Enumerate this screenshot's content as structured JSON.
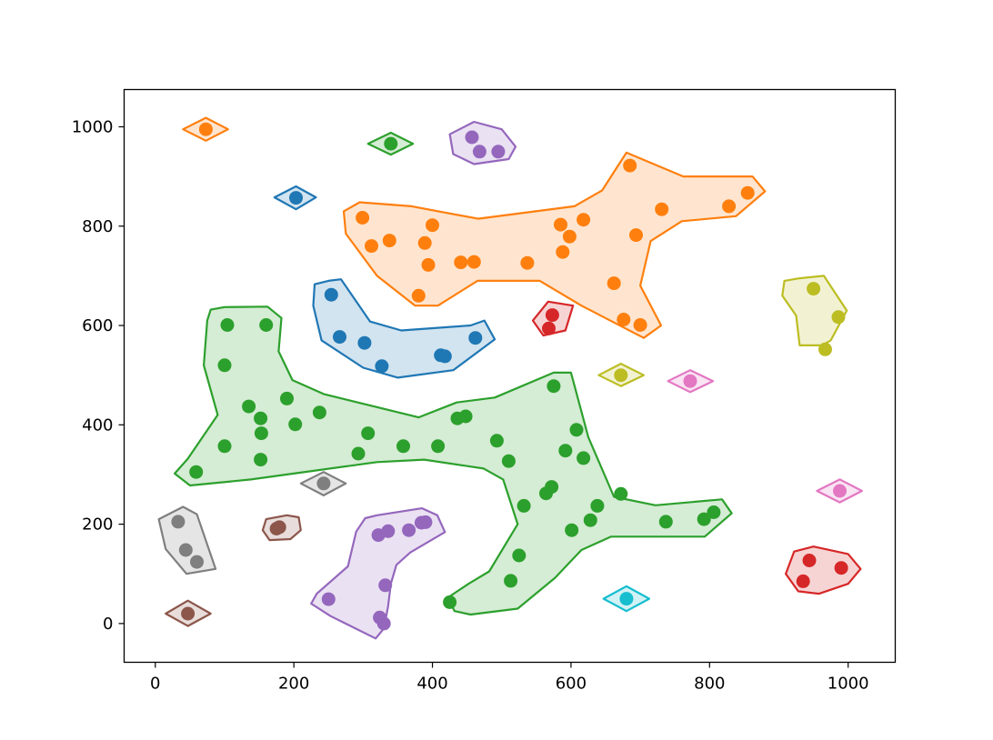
{
  "chart_data": {
    "type": "scatter",
    "title": "",
    "xlabel": "",
    "ylabel": "",
    "xlim": [
      -45,
      1068
    ],
    "ylim": [
      -78,
      1075
    ],
    "grid": false,
    "x_ticks": [
      0,
      200,
      400,
      600,
      800,
      1000
    ],
    "y_ticks": [
      0,
      200,
      400,
      600,
      800,
      1000
    ],
    "x_tick_labels": [
      "0",
      "200",
      "400",
      "600",
      "800",
      "1000"
    ],
    "y_tick_labels": [
      "0",
      "200",
      "400",
      "600",
      "800",
      "1000"
    ],
    "series": [
      {
        "color": "#1f77b4",
        "hull": [
          [
            250,
            690
          ],
          [
            268,
            693
          ],
          [
            310,
            608
          ],
          [
            355,
            590
          ],
          [
            455,
            600
          ],
          [
            475,
            610
          ],
          [
            490,
            572
          ],
          [
            430,
            510
          ],
          [
            350,
            495
          ],
          [
            300,
            515
          ],
          [
            240,
            570
          ],
          [
            228,
            640
          ],
          [
            230,
            683
          ]
        ],
        "points": [
          [
            254,
            662
          ],
          [
            266,
            577
          ],
          [
            302,
            565
          ],
          [
            327,
            518
          ],
          [
            412,
            540
          ],
          [
            418,
            538
          ],
          [
            462,
            575
          ]
        ]
      },
      {
        "color": "#1f77b4",
        "hull": [
          [
            203,
            880
          ],
          [
            232,
            858
          ],
          [
            203,
            834
          ],
          [
            172,
            858
          ]
        ],
        "points": [
          [
            203,
            857
          ]
        ]
      },
      {
        "color": "#ff7f0e",
        "hull": [
          [
            295,
            848
          ],
          [
            370,
            840
          ],
          [
            466,
            815
          ],
          [
            605,
            840
          ],
          [
            645,
            872
          ],
          [
            680,
            948
          ],
          [
            762,
            900
          ],
          [
            862,
            900
          ],
          [
            880,
            870
          ],
          [
            838,
            820
          ],
          [
            760,
            810
          ],
          [
            715,
            770
          ],
          [
            700,
            680
          ],
          [
            730,
            600
          ],
          [
            705,
            575
          ],
          [
            615,
            640
          ],
          [
            555,
            690
          ],
          [
            465,
            690
          ],
          [
            408,
            640
          ],
          [
            375,
            640
          ],
          [
            320,
            700
          ],
          [
            275,
            785
          ],
          [
            272,
            830
          ]
        ],
        "points": [
          [
            299,
            817
          ],
          [
            312,
            760
          ],
          [
            338,
            771
          ],
          [
            389,
            766
          ],
          [
            394,
            722
          ],
          [
            400,
            802
          ],
          [
            441,
            727
          ],
          [
            585,
            803
          ],
          [
            588,
            748
          ],
          [
            598,
            779
          ],
          [
            618,
            813
          ],
          [
            662,
            685
          ],
          [
            676,
            612
          ],
          [
            685,
            922
          ],
          [
            694,
            782
          ],
          [
            700,
            601
          ],
          [
            731,
            834
          ],
          [
            828,
            840
          ],
          [
            855,
            867
          ],
          [
            380,
            660
          ],
          [
            460,
            728
          ],
          [
            537,
            726
          ]
        ]
      },
      {
        "color": "#ff7f0e",
        "hull": [
          [
            73,
            1018
          ],
          [
            105,
            995
          ],
          [
            73,
            972
          ],
          [
            40,
            995
          ]
        ],
        "points": [
          [
            73,
            995
          ]
        ]
      },
      {
        "color": "#2ca02c",
        "hull": [
          [
            80,
            632
          ],
          [
            100,
            637
          ],
          [
            162,
            638
          ],
          [
            182,
            615
          ],
          [
            178,
            548
          ],
          [
            198,
            490
          ],
          [
            243,
            462
          ],
          [
            380,
            415
          ],
          [
            435,
            445
          ],
          [
            490,
            455
          ],
          [
            575,
            505
          ],
          [
            600,
            505
          ],
          [
            625,
            375
          ],
          [
            662,
            255
          ],
          [
            722,
            238
          ],
          [
            818,
            250
          ],
          [
            832,
            222
          ],
          [
            793,
            175
          ],
          [
            658,
            175
          ],
          [
            615,
            148
          ],
          [
            577,
            92
          ],
          [
            523,
            30
          ],
          [
            455,
            18
          ],
          [
            432,
            25
          ],
          [
            422,
            52
          ],
          [
            452,
            80
          ],
          [
            482,
            105
          ],
          [
            523,
            200
          ],
          [
            502,
            290
          ],
          [
            474,
            312
          ],
          [
            388,
            330
          ],
          [
            320,
            325
          ],
          [
            138,
            290
          ],
          [
            50,
            278
          ],
          [
            28,
            302
          ],
          [
            47,
            332
          ],
          [
            90,
            420
          ],
          [
            70,
            520
          ],
          [
            75,
            610
          ]
        ],
        "points": [
          [
            104,
            601
          ],
          [
            160,
            601
          ],
          [
            100,
            520
          ],
          [
            135,
            437
          ],
          [
            152,
            413
          ],
          [
            153,
            383
          ],
          [
            152,
            330
          ],
          [
            100,
            357
          ],
          [
            59,
            305
          ],
          [
            190,
            453
          ],
          [
            202,
            401
          ],
          [
            237,
            425
          ],
          [
            307,
            383
          ],
          [
            293,
            342
          ],
          [
            358,
            357
          ],
          [
            408,
            357
          ],
          [
            436,
            413
          ],
          [
            448,
            417
          ],
          [
            493,
            368
          ],
          [
            510,
            327
          ],
          [
            532,
            237
          ],
          [
            525,
            137
          ],
          [
            513,
            86
          ],
          [
            425,
            43
          ],
          [
            564,
            262
          ],
          [
            572,
            275
          ],
          [
            575,
            478
          ],
          [
            592,
            348
          ],
          [
            601,
            188
          ],
          [
            608,
            390
          ],
          [
            618,
            333
          ],
          [
            628,
            208
          ],
          [
            638,
            237
          ],
          [
            672,
            261
          ],
          [
            737,
            205
          ],
          [
            792,
            210
          ],
          [
            806,
            224
          ]
        ]
      },
      {
        "color": "#2ca02c",
        "hull": [
          [
            340,
            988
          ],
          [
            372,
            966
          ],
          [
            340,
            944
          ],
          [
            307,
            966
          ]
        ],
        "points": [
          [
            340,
            966
          ]
        ]
      },
      {
        "color": "#d62728",
        "hull": [
          [
            567,
            648
          ],
          [
            603,
            640
          ],
          [
            592,
            590
          ],
          [
            560,
            580
          ],
          [
            545,
            610
          ]
        ],
        "points": [
          [
            573,
            621
          ],
          [
            568,
            594
          ]
        ]
      },
      {
        "color": "#d62728",
        "hull": [
          [
            950,
            155
          ],
          [
            1000,
            140
          ],
          [
            1018,
            110
          ],
          [
            1000,
            80
          ],
          [
            958,
            60
          ],
          [
            928,
            65
          ],
          [
            910,
            100
          ],
          [
            922,
            145
          ]
        ],
        "points": [
          [
            944,
            127
          ],
          [
            935,
            85
          ],
          [
            990,
            112
          ]
        ]
      },
      {
        "color": "#9467bd",
        "hull": [
          [
            460,
            1010
          ],
          [
            500,
            995
          ],
          [
            520,
            960
          ],
          [
            510,
            935
          ],
          [
            460,
            925
          ],
          [
            430,
            945
          ],
          [
            425,
            985
          ]
        ],
        "points": [
          [
            457,
            979
          ],
          [
            468,
            950
          ],
          [
            495,
            950
          ]
        ]
      },
      {
        "color": "#9467bd",
        "hull": [
          [
            303,
            212
          ],
          [
            320,
            218
          ],
          [
            385,
            232
          ],
          [
            407,
            218
          ],
          [
            418,
            184
          ],
          [
            368,
            143
          ],
          [
            348,
            118
          ],
          [
            340,
            80
          ],
          [
            336,
            35
          ],
          [
            330,
            -10
          ],
          [
            318,
            -30
          ],
          [
            253,
            15
          ],
          [
            225,
            40
          ],
          [
            233,
            60
          ],
          [
            278,
            115
          ],
          [
            290,
            185
          ]
        ],
        "points": [
          [
            250,
            49
          ],
          [
            322,
            178
          ],
          [
            336,
            186
          ],
          [
            366,
            188
          ],
          [
            384,
            203
          ],
          [
            390,
            204
          ],
          [
            332,
            77
          ],
          [
            324,
            12
          ],
          [
            330,
            0
          ]
        ]
      },
      {
        "color": "#8c564b",
        "hull": [
          [
            190,
            218
          ],
          [
            207,
            214
          ],
          [
            210,
            188
          ],
          [
            195,
            170
          ],
          [
            165,
            168
          ],
          [
            155,
            188
          ],
          [
            160,
            210
          ]
        ],
        "points": [
          [
            175,
            191
          ],
          [
            179,
            194
          ]
        ]
      },
      {
        "color": "#8c564b",
        "hull": [
          [
            47,
            46
          ],
          [
            80,
            20
          ],
          [
            47,
            -5
          ],
          [
            15,
            20
          ]
        ],
        "points": [
          [
            47,
            20
          ]
        ]
      },
      {
        "color": "#e377c2",
        "hull": [
          [
            772,
            510
          ],
          [
            805,
            488
          ],
          [
            772,
            466
          ],
          [
            740,
            488
          ]
        ],
        "points": [
          [
            772,
            488
          ]
        ]
      },
      {
        "color": "#e377c2",
        "hull": [
          [
            988,
            290
          ],
          [
            1020,
            267
          ],
          [
            988,
            244
          ],
          [
            955,
            267
          ]
        ],
        "points": [
          [
            988,
            267
          ]
        ]
      },
      {
        "color": "#7f7f7f",
        "hull": [
          [
            40,
            235
          ],
          [
            60,
            220
          ],
          [
            87,
            110
          ],
          [
            45,
            100
          ],
          [
            15,
            150
          ],
          [
            5,
            210
          ]
        ],
        "points": [
          [
            33,
            205
          ],
          [
            44,
            148
          ],
          [
            60,
            124
          ]
        ]
      },
      {
        "color": "#7f7f7f",
        "hull": [
          [
            243,
            305
          ],
          [
            275,
            282
          ],
          [
            243,
            258
          ],
          [
            210,
            282
          ]
        ],
        "points": [
          [
            243,
            282
          ]
        ]
      },
      {
        "color": "#bcbd22",
        "hull": [
          [
            930,
            695
          ],
          [
            965,
            700
          ],
          [
            998,
            630
          ],
          [
            975,
            570
          ],
          [
            962,
            560
          ],
          [
            930,
            560
          ],
          [
            925,
            620
          ],
          [
            905,
            660
          ],
          [
            908,
            690
          ]
        ],
        "points": [
          [
            950,
            674
          ],
          [
            967,
            552
          ],
          [
            986,
            617
          ]
        ]
      },
      {
        "color": "#bcbd22",
        "hull": [
          [
            672,
            523
          ],
          [
            705,
            500
          ],
          [
            672,
            478
          ],
          [
            640,
            500
          ]
        ],
        "points": [
          [
            672,
            500
          ]
        ]
      },
      {
        "color": "#17becf",
        "hull": [
          [
            680,
            75
          ],
          [
            713,
            50
          ],
          [
            680,
            25
          ],
          [
            647,
            50
          ]
        ],
        "points": [
          [
            680,
            50
          ]
        ]
      }
    ]
  }
}
